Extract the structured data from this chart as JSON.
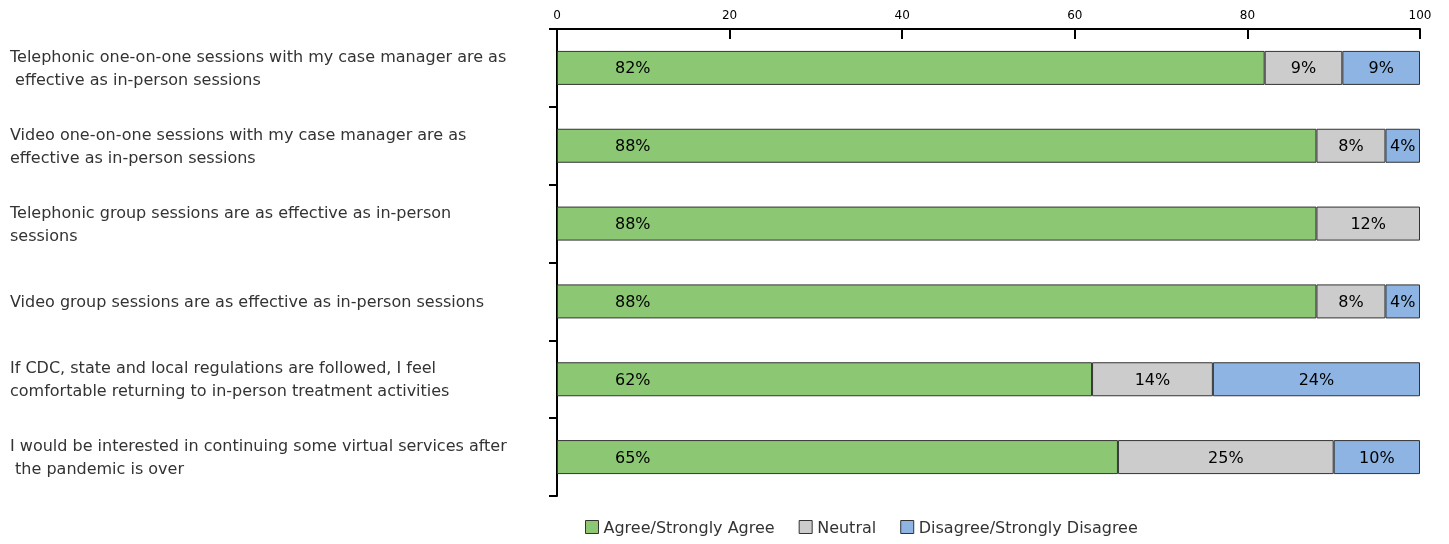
{
  "chart_data": {
    "type": "bar",
    "orientation": "horizontal",
    "stacked": true,
    "categories": [
      "Telephonic one-on-one sessions with my case manager are as effective as in-person sessions",
      "Video one-on-one sessions with my case manager are as effective as in-person sessions",
      "Telephonic group sessions are as effective as in-person sessions",
      "Video group sessions are as effective as in-person sessions",
      "If CDC, state and local regulations are followed, I feel comfortable returning to in-person treatment activities",
      "I would be interested in continuing some virtual services after the pandemic is over"
    ],
    "series": [
      {
        "name": "Agree/Strongly Agree",
        "color": "#8cc873",
        "values": [
          82,
          88,
          88,
          88,
          62,
          65
        ],
        "value_labels": [
          "82%",
          "88%",
          "88%",
          "88%",
          "62%",
          "65%"
        ]
      },
      {
        "name": "Neutral",
        "color": "#cccccc",
        "values": [
          9,
          8,
          12,
          8,
          14,
          25
        ],
        "value_labels": [
          "9%",
          "8%",
          "12%",
          "8%",
          "14%",
          "25%"
        ]
      },
      {
        "name": "Disagree/Strongly Disagree",
        "color": "#8db4e2",
        "values": [
          9,
          4,
          null,
          4,
          24,
          10
        ],
        "value_labels": [
          "9%",
          "4%",
          null,
          "4%",
          "24%",
          "10%"
        ]
      }
    ],
    "xlim": [
      0,
      100
    ],
    "xticks": [
      0,
      20,
      40,
      60,
      80,
      100
    ],
    "grid": false,
    "legend": "bottom"
  }
}
